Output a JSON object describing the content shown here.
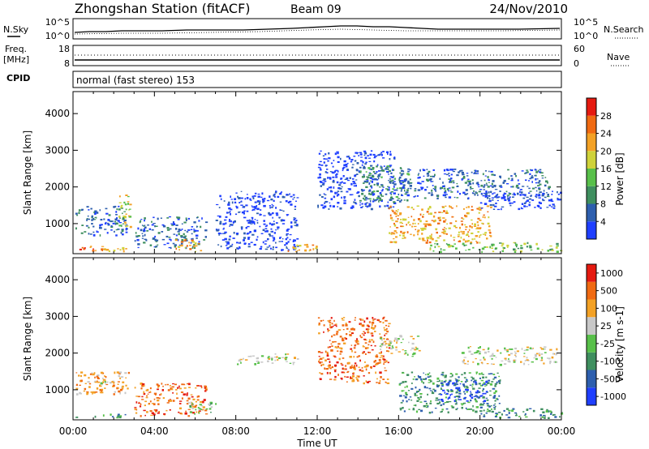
{
  "header": {
    "title": "Zhongshan Station (fitACF)",
    "beam": "Beam 09",
    "date": "24/Nov/2010"
  },
  "noise_panel": {
    "left_label": "N.Sky",
    "right_label": "N.Search",
    "left_ticks": [
      "10^5",
      "10^0"
    ],
    "right_ticks": [
      "10^5",
      "10^0"
    ]
  },
  "freq_panel": {
    "left_label_1": "Freq.",
    "left_label_2": "[MHz]",
    "right_label": "Nave",
    "left_ticks": [
      "18",
      "8"
    ],
    "right_ticks": [
      "60",
      "0"
    ]
  },
  "cpid_panel": {
    "label": "CPID",
    "text": "normal (fast stereo) 153"
  },
  "xaxis": {
    "label": "Time UT",
    "ticks": [
      "00:00",
      "04:00",
      "08:00",
      "12:00",
      "16:00",
      "20:00",
      "00:00"
    ]
  },
  "chart_data": [
    {
      "type": "heatmap",
      "name": "power-panel",
      "ylabel": "Slant Range [km]",
      "yticks": [
        1000,
        2000,
        3000,
        4000
      ],
      "ylim": [
        180,
        4600
      ],
      "xlim_hours": [
        0,
        24
      ],
      "colorbar_label": "Power [dB]",
      "colorbar_ticks": [
        "4",
        "8",
        "12",
        "16",
        "20",
        "24",
        "28"
      ],
      "colors": [
        "#1f3fff",
        "#2e5fae",
        "#3f8f5f",
        "#58c04a",
        "#cfd23a",
        "#f3a125",
        "#f06a12",
        "#e51a10"
      ],
      "regions": [
        {
          "t0": 0.1,
          "t1": 2.6,
          "r0": 700,
          "r1": 1500,
          "level": 1
        },
        {
          "t0": 0.2,
          "t1": 1.5,
          "r0": 250,
          "r1": 400,
          "level": 6
        },
        {
          "t0": 1.3,
          "t1": 2.8,
          "r0": 260,
          "r1": 380,
          "level": 5
        },
        {
          "t0": 2.2,
          "t1": 2.8,
          "r0": 900,
          "r1": 1800,
          "level": 4
        },
        {
          "t0": 3.0,
          "t1": 6.5,
          "r0": 350,
          "r1": 1200,
          "level": 1
        },
        {
          "t0": 5.0,
          "t1": 6.3,
          "r0": 250,
          "r1": 600,
          "level": 5
        },
        {
          "t0": 7.0,
          "t1": 11.0,
          "r0": 300,
          "r1": 1900,
          "level": 0
        },
        {
          "t0": 10.5,
          "t1": 12.0,
          "r0": 250,
          "r1": 450,
          "level": 5
        },
        {
          "t0": 12.0,
          "t1": 15.8,
          "r0": 1400,
          "r1": 3000,
          "level": 0
        },
        {
          "t0": 14.0,
          "t1": 16.5,
          "r0": 1600,
          "r1": 2600,
          "level": 2
        },
        {
          "t0": 15.5,
          "t1": 20.5,
          "r0": 500,
          "r1": 1500,
          "level": 5
        },
        {
          "t0": 16.0,
          "t1": 23.5,
          "r0": 1700,
          "r1": 2500,
          "level": 1
        },
        {
          "t0": 20.0,
          "t1": 24.0,
          "r0": 1400,
          "r1": 1900,
          "level": 0
        },
        {
          "t0": 17.5,
          "t1": 24.0,
          "r0": 250,
          "r1": 500,
          "level": 3
        }
      ]
    },
    {
      "type": "heatmap",
      "name": "velocity-panel",
      "ylabel": "Slant Range [km]",
      "yticks": [
        1000,
        2000,
        3000,
        4000
      ],
      "ylim": [
        180,
        4600
      ],
      "xlim_hours": [
        0,
        24
      ],
      "colorbar_label": "Velocity [m s-1]",
      "colorbar_ticks": [
        "1000",
        "500",
        "100",
        "25",
        "-25",
        "-100",
        "-500",
        "-1000"
      ],
      "colors": [
        "#1f3fff",
        "#2e5fae",
        "#3f8f5f",
        "#58c04a",
        "#c8c8c8",
        "#f3a125",
        "#f06a12",
        "#e51a10"
      ],
      "regions": [
        {
          "t0": 0.1,
          "t1": 2.6,
          "r0": 250,
          "r1": 350,
          "level": 2
        },
        {
          "t0": 0.1,
          "t1": 2.8,
          "r0": 900,
          "r1": 1500,
          "level": 5
        },
        {
          "t0": 1.0,
          "t1": 2.0,
          "r0": 1200,
          "r1": 1250,
          "level": 4
        },
        {
          "t0": 3.0,
          "t1": 6.5,
          "r0": 300,
          "r1": 1200,
          "level": 6
        },
        {
          "t0": 5.5,
          "t1": 7.0,
          "r0": 350,
          "r1": 700,
          "level": 3
        },
        {
          "t0": 8.0,
          "t1": 11.0,
          "r0": 1700,
          "r1": 2000,
          "level": 4
        },
        {
          "t0": 12.0,
          "t1": 15.5,
          "r0": 1200,
          "r1": 3000,
          "level": 6
        },
        {
          "t0": 15.0,
          "t1": 17.0,
          "r0": 1900,
          "r1": 2500,
          "level": 4
        },
        {
          "t0": 16.0,
          "t1": 21.0,
          "r0": 400,
          "r1": 1500,
          "level": 2
        },
        {
          "t0": 18.0,
          "t1": 20.5,
          "r0": 700,
          "r1": 1300,
          "level": 0
        },
        {
          "t0": 19.0,
          "t1": 23.8,
          "r0": 1700,
          "r1": 2200,
          "level": 4
        },
        {
          "t0": 20.0,
          "t1": 24.0,
          "r0": 250,
          "r1": 500,
          "level": 2
        }
      ]
    }
  ]
}
